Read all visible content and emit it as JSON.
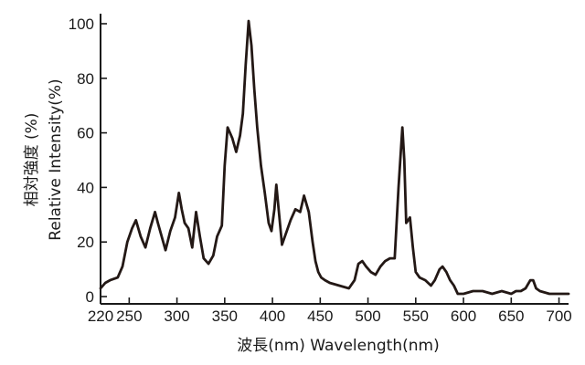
{
  "chart_data": {
    "type": "line",
    "title": "",
    "xlabel": "波長(nm) Wavelength(nm)",
    "ylabel_lines": [
      "相対強度 (%)",
      "Relative Intensity(%)"
    ],
    "xlim": [
      220,
      710
    ],
    "ylim": [
      0,
      102
    ],
    "xticks": [
      220,
      250,
      300,
      350,
      400,
      450,
      500,
      550,
      600,
      650,
      700
    ],
    "yticks": [
      0,
      20,
      40,
      60,
      80,
      100
    ],
    "grid": false,
    "legend": "none",
    "line_color": "#231815",
    "series": [
      {
        "x": [
          220,
          225,
          230,
          238,
          243,
          248,
          253,
          257,
          262,
          267,
          272,
          277,
          280,
          284,
          288,
          293,
          298,
          302,
          305,
          308,
          312,
          316,
          320,
          324,
          328,
          333,
          338,
          342,
          347,
          350,
          353,
          358,
          362,
          366,
          369,
          372,
          375,
          378,
          381,
          384,
          388,
          392,
          396,
          399,
          402,
          404,
          407,
          410,
          414,
          419,
          424,
          429,
          433,
          438,
          442,
          445,
          448,
          451,
          455,
          460,
          470,
          480,
          486,
          490,
          494,
          498,
          503,
          508,
          513,
          518,
          523,
          528,
          532,
          536,
          538,
          540,
          544,
          547,
          550,
          554,
          560,
          566,
          570,
          575,
          578,
          582,
          586,
          590,
          594,
          600,
          610,
          620,
          630,
          640,
          650,
          655,
          660,
          665,
          670,
          673,
          676,
          680,
          690,
          700,
          710
        ],
        "values": [
          3,
          5,
          6,
          7,
          11,
          20,
          25,
          28,
          22,
          18,
          25,
          31,
          27,
          22,
          17,
          24,
          29,
          38,
          32,
          27,
          25,
          18,
          31,
          22,
          14,
          12,
          15,
          22,
          26,
          48,
          62,
          58,
          53,
          59,
          67,
          85,
          101,
          92,
          76,
          62,
          48,
          38,
          27,
          24,
          32,
          41,
          30,
          19,
          23,
          28,
          32,
          31,
          37,
          31,
          20,
          13,
          9,
          7,
          6,
          5,
          4,
          3,
          6,
          12,
          13,
          11,
          9,
          8,
          11,
          13,
          14,
          14,
          40,
          62,
          50,
          27,
          29,
          18,
          9,
          7,
          6,
          4,
          6,
          10,
          11,
          9,
          6,
          4,
          1,
          1,
          2,
          2,
          1,
          2,
          1,
          2,
          2,
          3,
          6,
          6,
          3,
          2,
          1,
          1,
          1
        ]
      }
    ]
  }
}
